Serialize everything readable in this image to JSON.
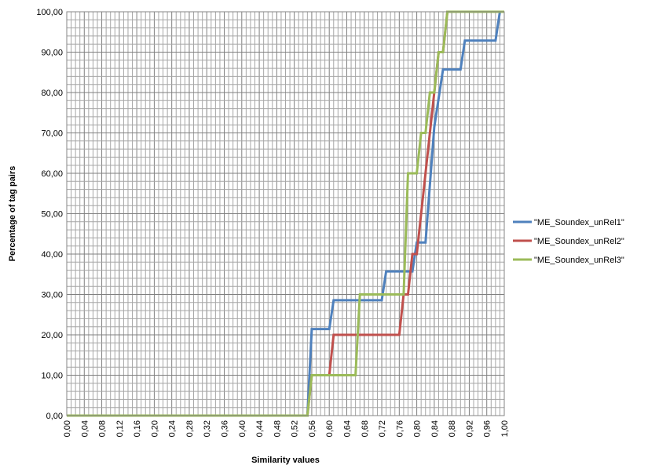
{
  "chart_data": {
    "type": "line",
    "xlabel": "Similarity values",
    "ylabel": "Percentage of tag pairs",
    "xlim": [
      0,
      1
    ],
    "ylim": [
      0,
      100
    ],
    "grid": true,
    "legend_position": "right",
    "x_tick_labels": [
      "0,00",
      "0,04",
      "0,08",
      "0,12",
      "0,16",
      "0,20",
      "0,24",
      "0,28",
      "0,32",
      "0,36",
      "0,40",
      "0,44",
      "0,48",
      "0,52",
      "0,56",
      "0,60",
      "0,64",
      "0,68",
      "0,72",
      "0,76",
      "0,80",
      "0,84",
      "0,88",
      "0,92",
      "0,96",
      "1,00"
    ],
    "y_tick_labels": [
      "0,00",
      "10,00",
      "20,00",
      "30,00",
      "40,00",
      "50,00",
      "60,00",
      "70,00",
      "80,00",
      "90,00",
      "100,00"
    ],
    "series": [
      {
        "name": "\"ME_Soundex_unRel1\"",
        "color": "#4f81bd",
        "x": [
          0,
          0.55,
          0.56,
          0.6,
          0.61,
          0.72,
          0.73,
          0.79,
          0.8,
          0.82,
          0.83,
          0.84,
          0.85,
          0.86,
          0.9,
          0.91,
          0.98,
          0.99,
          1.0
        ],
        "y": [
          0,
          0,
          21.43,
          21.43,
          28.57,
          28.57,
          35.71,
          35.71,
          42.86,
          42.86,
          57.14,
          71.43,
          78.57,
          85.71,
          85.71,
          92.86,
          92.86,
          100,
          100
        ]
      },
      {
        "name": "\"ME_Soundex_unRel2\"",
        "color": "#c0504d",
        "x": [
          0,
          0.55,
          0.56,
          0.6,
          0.61,
          0.76,
          0.77,
          0.78,
          0.79,
          0.8,
          0.81,
          0.82,
          0.83,
          0.84,
          0.85,
          0.86,
          0.87,
          1.0
        ],
        "y": [
          0,
          0,
          10,
          10,
          20,
          20,
          30,
          30,
          40,
          40,
          50,
          60,
          70,
          80,
          90,
          90,
          100,
          100
        ]
      },
      {
        "name": "\"ME_Soundex_unRel3\"",
        "color": "#9bbb59",
        "x": [
          0,
          0.55,
          0.56,
          0.66,
          0.67,
          0.77,
          0.78,
          0.8,
          0.81,
          0.82,
          0.83,
          0.84,
          0.85,
          0.86,
          0.87,
          1.0
        ],
        "y": [
          0,
          0,
          10,
          10,
          30,
          30,
          60,
          60,
          70,
          70,
          80,
          80,
          90,
          90,
          100,
          100
        ]
      }
    ]
  }
}
